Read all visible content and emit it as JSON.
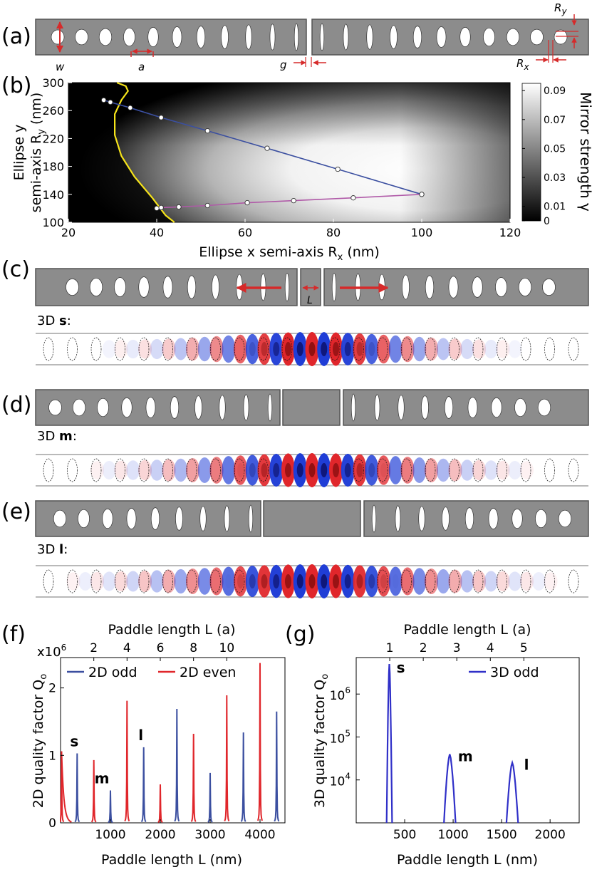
{
  "panels": {
    "a": {
      "label": "(a)",
      "dims": [
        "w",
        "a",
        "g",
        "R",
        "y",
        "R",
        "x"
      ]
    },
    "b": {
      "label": "(b)"
    },
    "c": {
      "label": "(c)",
      "paddle": "L",
      "mode_prefix": "3D ",
      "mode": "s",
      "mode_suffix": ":"
    },
    "d": {
      "label": "(d)",
      "mode_prefix": "3D ",
      "mode": "m",
      "mode_suffix": ":"
    },
    "e": {
      "label": "(e)",
      "mode_prefix": "3D ",
      "mode": "l",
      "mode_suffix": ":"
    },
    "f": {
      "label": "(f)"
    },
    "g": {
      "label": "(g)"
    }
  },
  "colors": {
    "blue": "#3b4fa0",
    "red": "#e0262b",
    "magenta": "#b05aa8",
    "yellow": "#f5e31a",
    "arrow": "#d62a2a"
  },
  "chart_data": [
    {
      "type": "heatmap",
      "panel": "b",
      "xlabel": "Ellipse x semi-axis R",
      "xlabel_sub": "x",
      "xlabel_unit": " (nm)",
      "ylabel_line1": "Ellipse y",
      "ylabel_line2": "semi-axis R",
      "ylabel_sub": "y",
      "ylabel_unit": " (nm)",
      "colorbar_label": "Mirror strength γ",
      "xlim": [
        20,
        120
      ],
      "ylim": [
        100,
        300
      ],
      "x_ticks": [
        20,
        40,
        60,
        80,
        100,
        120
      ],
      "y_ticks": [
        100,
        140,
        180,
        220,
        260,
        300
      ],
      "colorbar_ticks": [
        "0.09",
        "0.07",
        "0.05",
        "0.03",
        "0.01",
        "0"
      ],
      "colorbar_range": [
        0,
        0.095
      ],
      "series": [
        {
          "color": "#3b4fa0",
          "x": [
            28,
            29.5,
            34,
            41,
            51.5,
            65,
            81,
            100
          ],
          "y": [
            275,
            272,
            264,
            250,
            231,
            206,
            176,
            140
          ]
        },
        {
          "color": "#b05aa8",
          "x": [
            100,
            84.5,
            71,
            60.5,
            51.5,
            45,
            41,
            40
          ],
          "y": [
            140,
            135,
            131,
            128,
            124,
            122,
            121,
            120
          ]
        }
      ],
      "boundary_curve": {
        "color": "#f5e31a",
        "x": [
          31,
          33,
          33.5,
          32,
          30.5,
          30.5,
          32,
          35,
          39,
          42,
          44
        ],
        "y": [
          300,
          295,
          288,
          275,
          255,
          225,
          195,
          165,
          135,
          110,
          100
        ]
      }
    },
    {
      "type": "line",
      "panel": "f",
      "xlabel": "Paddle length L  (nm)",
      "xlabel_top": "Paddle length L  (a)",
      "ylabel": "2D quality factor Q",
      "ylabel_sub": "o",
      "y_multiplier": "x10",
      "y_multiplier_exp": "6",
      "xlim": [
        0,
        4500
      ],
      "ylim": [
        0,
        2.45
      ],
      "x_ticks": [
        1000,
        2000,
        3000,
        4000
      ],
      "x_ticks_top": [
        2,
        4,
        6,
        8,
        10
      ],
      "y_ticks": [
        0,
        1,
        2
      ],
      "legend": "top",
      "series": [
        {
          "name": "2D odd",
          "color": "#3b4fa0",
          "peaks_x": [
            333,
            1000,
            1667,
            2333,
            3000,
            3667,
            4333
          ],
          "peaks_y": [
            1.03,
            0.48,
            1.12,
            1.69,
            0.74,
            1.34,
            1.65
          ]
        },
        {
          "name": "2D even",
          "color": "#e0262b",
          "peaks_x": [
            20,
            667,
            1333,
            2000,
            2667,
            3333,
            4000
          ],
          "peaks_y": [
            1.06,
            0.93,
            1.81,
            0.57,
            1.32,
            1.89,
            2.37
          ]
        }
      ],
      "annotations": [
        {
          "text": "s",
          "x": 333,
          "y": 1.03
        },
        {
          "text": "m",
          "x": 1000,
          "y": 0.48
        },
        {
          "text": "l",
          "x": 1667,
          "y": 1.12
        }
      ]
    },
    {
      "type": "line",
      "panel": "g",
      "xlabel": "Paddle length L  (nm)",
      "xlabel_top": "Paddle length L  (a)",
      "ylabel": "3D quality factor Q",
      "ylabel_sub": "o",
      "log_y": true,
      "xlim": [
        0,
        2300
      ],
      "ylim_log10": [
        3.0,
        6.85
      ],
      "x_ticks": [
        500,
        1000,
        1500,
        2000
      ],
      "x_ticks_top": [
        1,
        2,
        3,
        4,
        5
      ],
      "y_ticks": [
        "10",
        "10",
        "10"
      ],
      "y_ticks_exp": [
        "4",
        "5",
        "6"
      ],
      "legend": "top-right",
      "series": [
        {
          "name": "3D odd",
          "color": "#3030c8",
          "peaks_x": [
            342,
            965,
            1610
          ],
          "peaks_log10": [
            6.7,
            4.6,
            4.4
          ]
        }
      ],
      "annotations": [
        {
          "text": "s",
          "x": 342
        },
        {
          "text": "m",
          "x": 965
        },
        {
          "text": "l",
          "x": 1610
        }
      ]
    }
  ]
}
